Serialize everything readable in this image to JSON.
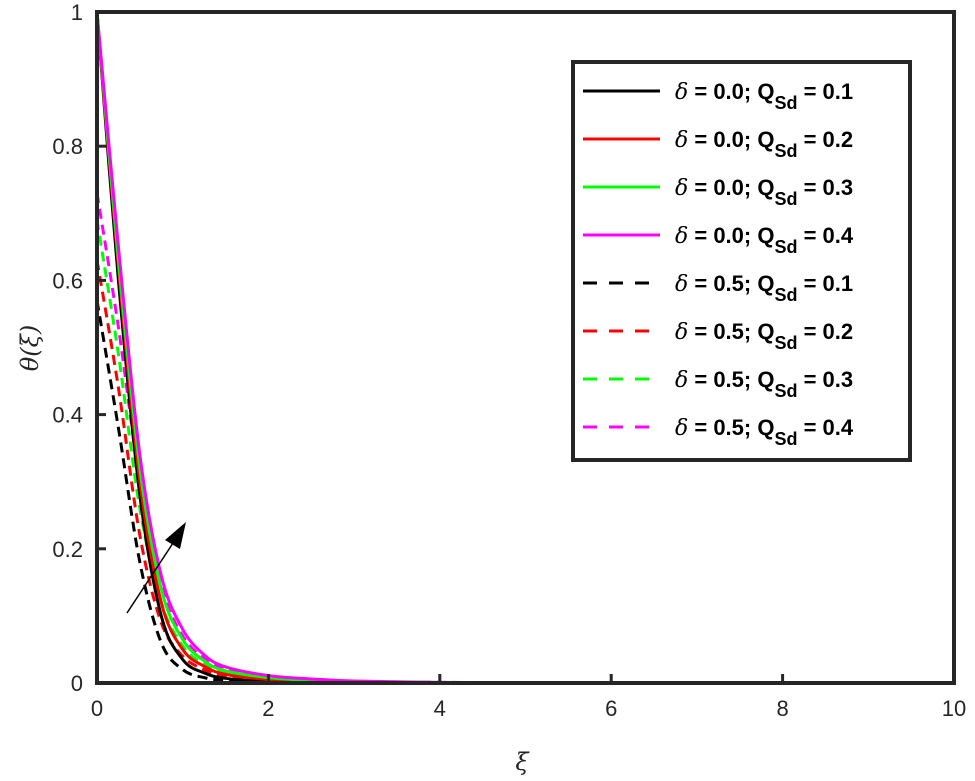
{
  "chart_data": {
    "type": "line",
    "title": "",
    "xlabel": "ξ",
    "ylabel": "θ(ξ)",
    "xlim": [
      0,
      10
    ],
    "ylim": [
      0,
      1
    ],
    "xticks": [
      0,
      2,
      4,
      6,
      8,
      10
    ],
    "yticks": [
      0,
      0.2,
      0.4,
      0.6,
      0.8,
      1
    ],
    "ytick_labels": [
      "0",
      "0.2",
      "0.4",
      "0.6",
      "0.8",
      "1"
    ],
    "xtick_labels": [
      "0",
      "2",
      "4",
      "6",
      "8",
      "10"
    ],
    "grid": false,
    "legend_position": "upper right",
    "annotation": "arrow indicating increasing Q_Sd",
    "x": [
      0,
      0.25,
      0.5,
      0.75,
      1.0,
      1.25,
      1.5,
      2.0,
      2.5,
      3.0,
      4.0,
      5.0,
      6.0,
      8.0,
      10.0
    ],
    "series": [
      {
        "name": "δ = 0.0; Q_Sd = 0.1",
        "color": "#000000",
        "style": "solid",
        "values": [
          1.0,
          0.6,
          0.28,
          0.1,
          0.035,
          0.015,
          0.007,
          0.002,
          0.001,
          0.0,
          0.0,
          0.0,
          0.0,
          0.0,
          0.0
        ]
      },
      {
        "name": "δ = 0.0; Q_Sd = 0.2",
        "color": "#ff0000",
        "style": "solid",
        "values": [
          1.0,
          0.62,
          0.3,
          0.12,
          0.05,
          0.025,
          0.013,
          0.005,
          0.002,
          0.001,
          0.0,
          0.0,
          0.0,
          0.0,
          0.0
        ]
      },
      {
        "name": "δ = 0.0; Q_Sd = 0.3",
        "color": "#00ff00",
        "style": "solid",
        "values": [
          1.0,
          0.63,
          0.32,
          0.14,
          0.065,
          0.033,
          0.018,
          0.008,
          0.004,
          0.002,
          0.0,
          0.0,
          0.0,
          0.0,
          0.0
        ]
      },
      {
        "name": "δ = 0.0; Q_Sd = 0.4",
        "color": "#ff00ff",
        "style": "solid",
        "values": [
          1.0,
          0.65,
          0.34,
          0.16,
          0.08,
          0.042,
          0.024,
          0.011,
          0.006,
          0.003,
          0.001,
          0.0,
          0.0,
          0.0,
          0.0
        ]
      },
      {
        "name": "δ = 0.5; Q_Sd = 0.1",
        "color": "#000000",
        "style": "dashed",
        "values": [
          0.57,
          0.38,
          0.18,
          0.06,
          0.02,
          0.008,
          0.004,
          0.001,
          0.0,
          0.0,
          0.0,
          0.0,
          0.0,
          0.0,
          0.0
        ]
      },
      {
        "name": "δ = 0.5; Q_Sd = 0.2",
        "color": "#ff0000",
        "style": "dashed",
        "values": [
          0.63,
          0.44,
          0.22,
          0.09,
          0.04,
          0.02,
          0.01,
          0.004,
          0.002,
          0.001,
          0.0,
          0.0,
          0.0,
          0.0,
          0.0
        ]
      },
      {
        "name": "δ = 0.5; Q_Sd = 0.3",
        "color": "#00ff00",
        "style": "dashed",
        "values": [
          0.69,
          0.49,
          0.26,
          0.12,
          0.055,
          0.028,
          0.015,
          0.006,
          0.003,
          0.001,
          0.0,
          0.0,
          0.0,
          0.0,
          0.0
        ]
      },
      {
        "name": "δ = 0.5; Q_Sd = 0.4",
        "color": "#ff00ff",
        "style": "dashed",
        "values": [
          0.73,
          0.53,
          0.3,
          0.145,
          0.07,
          0.037,
          0.02,
          0.009,
          0.005,
          0.002,
          0.001,
          0.0,
          0.0,
          0.0,
          0.0
        ]
      }
    ]
  },
  "legend": {
    "items": [
      {
        "delta": "δ",
        "text": " = 0.0; Q",
        "sub": "Sd",
        "tail": " = 0.1"
      },
      {
        "delta": "δ",
        "text": " = 0.0; Q",
        "sub": "Sd",
        "tail": " = 0.2"
      },
      {
        "delta": "δ",
        "text": " = 0.0; Q",
        "sub": "Sd",
        "tail": " = 0.3"
      },
      {
        "delta": "δ",
        "text": " = 0.0; Q",
        "sub": "Sd",
        "tail": " = 0.4"
      },
      {
        "delta": "δ",
        "text": " = 0.5; Q",
        "sub": "Sd",
        "tail": " = 0.1"
      },
      {
        "delta": "δ",
        "text": " = 0.5; Q",
        "sub": "Sd",
        "tail": " = 0.2"
      },
      {
        "delta": "δ",
        "text": " = 0.5; Q",
        "sub": "Sd",
        "tail": " = 0.3"
      },
      {
        "delta": "δ",
        "text": " = 0.5; Q",
        "sub": "Sd",
        "tail": " = 0.4"
      }
    ]
  },
  "axes": {
    "xlabel": "ξ",
    "ylabel": "θ(ξ)"
  }
}
